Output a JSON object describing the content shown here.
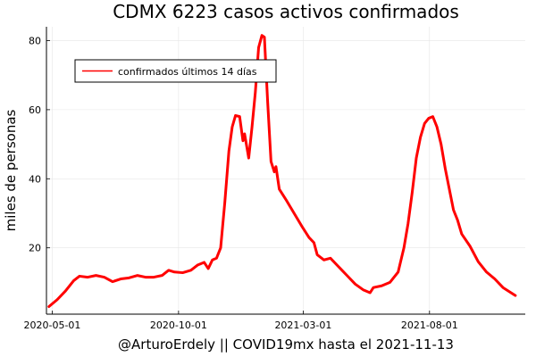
{
  "chart_data": {
    "type": "line",
    "title": "CDMX   6223 casos activos confirmados",
    "xlabel": "@ArturoErdely || COVID19mx hasta el 2021-11-13",
    "ylabel": "miles de personas",
    "xlim": [
      "2020-04-24",
      "2021-11-25"
    ],
    "ylim": [
      0.8,
      84
    ],
    "grid": true,
    "legend_position": "top-left",
    "x_ticks": [
      {
        "label": "2020-05-01",
        "date": "2020-05-01"
      },
      {
        "label": "2020-10-01",
        "date": "2020-10-01"
      },
      {
        "label": "2021-03-01",
        "date": "2021-03-01"
      },
      {
        "label": "2021-08-01",
        "date": "2021-08-01"
      }
    ],
    "y_ticks": [
      20,
      40,
      60,
      80
    ],
    "series": [
      {
        "name": "confirmados últimos 14 días",
        "color": "#ff0000",
        "points": [
          [
            "2020-04-27",
            3.0
          ],
          [
            "2020-05-07",
            5.0
          ],
          [
            "2020-05-17",
            7.5
          ],
          [
            "2020-05-27",
            10.5
          ],
          [
            "2020-06-03",
            11.8
          ],
          [
            "2020-06-13",
            11.5
          ],
          [
            "2020-06-23",
            12.0
          ],
          [
            "2020-07-03",
            11.5
          ],
          [
            "2020-07-13",
            10.2
          ],
          [
            "2020-07-23",
            11.0
          ],
          [
            "2020-08-02",
            11.3
          ],
          [
            "2020-08-12",
            12.0
          ],
          [
            "2020-08-22",
            11.5
          ],
          [
            "2020-09-01",
            11.5
          ],
          [
            "2020-09-11",
            12.0
          ],
          [
            "2020-09-19",
            13.5
          ],
          [
            "2020-09-26",
            13.0
          ],
          [
            "2020-10-06",
            12.8
          ],
          [
            "2020-10-16",
            13.5
          ],
          [
            "2020-10-24",
            15.0
          ],
          [
            "2020-11-01",
            15.8
          ],
          [
            "2020-11-06",
            14.0
          ],
          [
            "2020-11-11",
            16.5
          ],
          [
            "2020-11-16",
            17.0
          ],
          [
            "2020-11-21",
            20.0
          ],
          [
            "2020-11-26",
            33.0
          ],
          [
            "2020-12-01",
            48.0
          ],
          [
            "2020-12-05",
            55.0
          ],
          [
            "2020-12-09",
            58.3
          ],
          [
            "2020-12-14",
            58.0
          ],
          [
            "2020-12-18",
            51.0
          ],
          [
            "2020-12-20",
            53.0
          ],
          [
            "2020-12-25",
            46.0
          ],
          [
            "2020-12-29",
            55.0
          ],
          [
            "2021-01-02",
            65.0
          ],
          [
            "2021-01-06",
            78.0
          ],
          [
            "2021-01-10",
            81.5
          ],
          [
            "2021-01-13",
            81.0
          ],
          [
            "2021-01-17",
            62.0
          ],
          [
            "2021-01-21",
            45.0
          ],
          [
            "2021-01-25",
            42.0
          ],
          [
            "2021-01-27",
            43.5
          ],
          [
            "2021-01-31",
            37.0
          ],
          [
            "2021-02-08",
            34.0
          ],
          [
            "2021-02-18",
            30.0
          ],
          [
            "2021-02-28",
            26.0
          ],
          [
            "2021-03-08",
            23.0
          ],
          [
            "2021-03-14",
            21.5
          ],
          [
            "2021-03-18",
            18.0
          ],
          [
            "2021-03-26",
            16.5
          ],
          [
            "2021-04-03",
            17.0
          ],
          [
            "2021-04-13",
            14.5
          ],
          [
            "2021-04-23",
            12.0
          ],
          [
            "2021-05-03",
            9.5
          ],
          [
            "2021-05-13",
            7.8
          ],
          [
            "2021-05-21",
            7.0
          ],
          [
            "2021-05-25",
            8.5
          ],
          [
            "2021-06-04",
            9.0
          ],
          [
            "2021-06-14",
            10.0
          ],
          [
            "2021-06-24",
            13.0
          ],
          [
            "2021-07-01",
            20.0
          ],
          [
            "2021-07-06",
            27.0
          ],
          [
            "2021-07-11",
            36.0
          ],
          [
            "2021-07-16",
            46.0
          ],
          [
            "2021-07-21",
            52.0
          ],
          [
            "2021-07-26",
            56.0
          ],
          [
            "2021-07-31",
            57.5
          ],
          [
            "2021-08-05",
            58.0
          ],
          [
            "2021-08-10",
            55.0
          ],
          [
            "2021-08-15",
            50.0
          ],
          [
            "2021-08-20",
            43.0
          ],
          [
            "2021-08-25",
            37.0
          ],
          [
            "2021-08-30",
            31.0
          ],
          [
            "2021-09-04",
            28.0
          ],
          [
            "2021-09-09",
            24.0
          ],
          [
            "2021-09-19",
            20.5
          ],
          [
            "2021-09-29",
            16.0
          ],
          [
            "2021-10-09",
            13.0
          ],
          [
            "2021-10-19",
            11.0
          ],
          [
            "2021-10-29",
            8.5
          ],
          [
            "2021-11-13",
            6.2
          ]
        ]
      }
    ]
  }
}
